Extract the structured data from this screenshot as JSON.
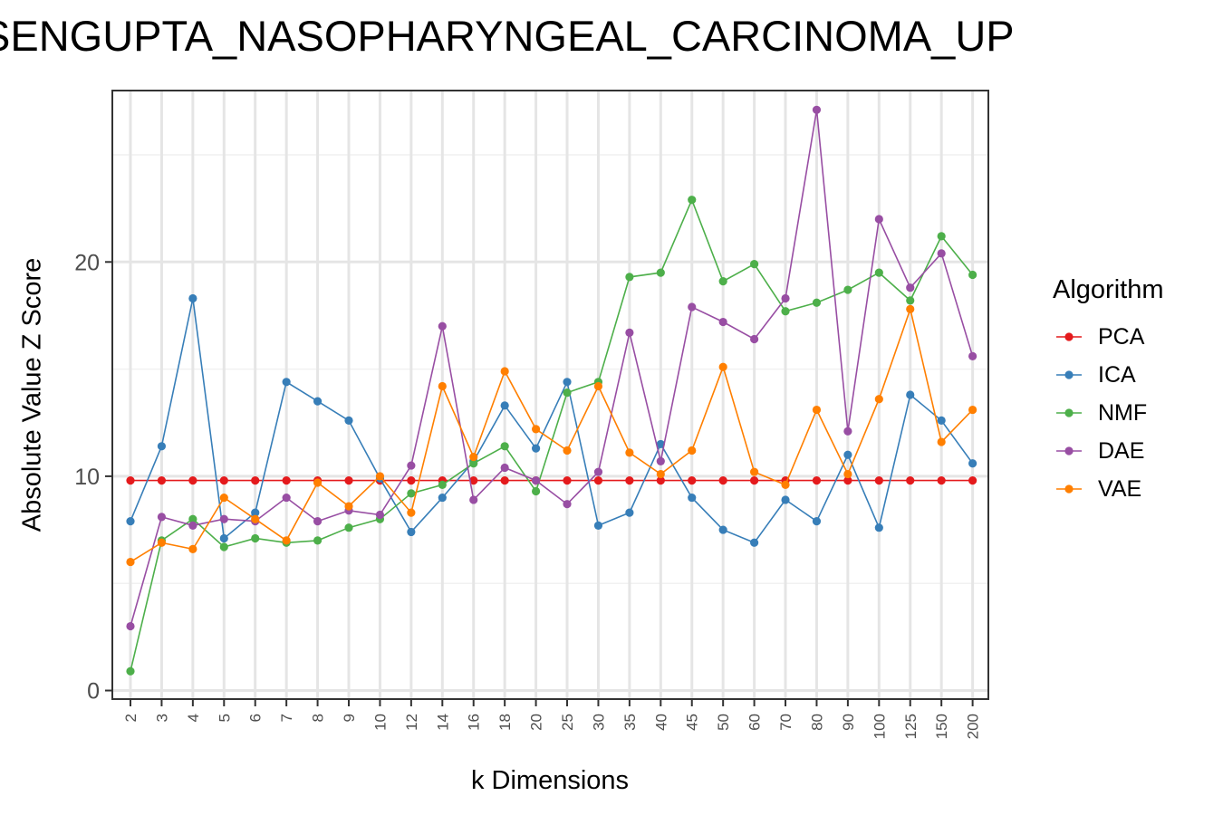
{
  "chart_data": {
    "type": "line",
    "title": "SENGUPTA_NASOPHARYNGEAL_CARCINOMA_UP",
    "xlabel": "k Dimensions",
    "ylabel": "Absolute Value Z Score",
    "categories": [
      "2",
      "3",
      "4",
      "5",
      "6",
      "7",
      "8",
      "9",
      "10",
      "12",
      "14",
      "16",
      "18",
      "20",
      "25",
      "30",
      "35",
      "40",
      "45",
      "50",
      "60",
      "70",
      "80",
      "90",
      "100",
      "125",
      "150",
      "200"
    ],
    "ylim": [
      -0.4,
      28
    ],
    "yticks": [
      0,
      10,
      20
    ],
    "grid": true,
    "legend_title": "Algorithm",
    "legend_position": "right",
    "series": [
      {
        "name": "PCA",
        "color": "#E41A1C",
        "values": [
          9.8,
          9.8,
          9.8,
          9.8,
          9.8,
          9.8,
          9.8,
          9.8,
          9.8,
          9.8,
          9.8,
          9.8,
          9.8,
          9.8,
          9.8,
          9.8,
          9.8,
          9.8,
          9.8,
          9.8,
          9.8,
          9.8,
          9.8,
          9.8,
          9.8,
          9.8,
          9.8,
          9.8
        ]
      },
      {
        "name": "ICA",
        "color": "#377EB8",
        "values": [
          7.9,
          11.4,
          18.3,
          7.1,
          8.3,
          14.4,
          13.5,
          12.6,
          9.9,
          7.4,
          9.0,
          10.7,
          13.3,
          11.3,
          14.4,
          7.7,
          8.3,
          11.5,
          9.0,
          7.5,
          6.9,
          8.9,
          7.9,
          11.0,
          7.6,
          13.8,
          12.6,
          10.6
        ]
      },
      {
        "name": "NMF",
        "color": "#4DAF4A",
        "values": [
          0.9,
          7.0,
          8.0,
          6.7,
          7.1,
          6.9,
          7.0,
          7.6,
          8.0,
          9.2,
          9.6,
          10.6,
          11.4,
          9.3,
          13.9,
          14.4,
          19.3,
          19.5,
          22.9,
          19.1,
          19.9,
          17.7,
          18.1,
          18.7,
          19.5,
          18.2,
          21.2,
          19.4
        ]
      },
      {
        "name": "DAE",
        "color": "#984EA3",
        "values": [
          3.0,
          8.1,
          7.7,
          8.0,
          7.9,
          9.0,
          7.9,
          8.4,
          8.2,
          10.5,
          17.0,
          8.9,
          10.4,
          9.8,
          8.7,
          10.2,
          16.7,
          10.7,
          17.9,
          17.2,
          16.4,
          18.3,
          27.1,
          12.1,
          22.0,
          18.8,
          20.4,
          15.6
        ]
      },
      {
        "name": "VAE",
        "color": "#FF7F00",
        "values": [
          6.0,
          6.9,
          6.6,
          9.0,
          8.0,
          7.0,
          9.7,
          8.6,
          10.0,
          8.3,
          14.2,
          10.9,
          14.9,
          12.2,
          11.2,
          14.2,
          11.1,
          10.1,
          11.2,
          15.1,
          10.2,
          9.6,
          13.1,
          10.1,
          13.6,
          17.8,
          11.6,
          13.1
        ]
      }
    ]
  }
}
